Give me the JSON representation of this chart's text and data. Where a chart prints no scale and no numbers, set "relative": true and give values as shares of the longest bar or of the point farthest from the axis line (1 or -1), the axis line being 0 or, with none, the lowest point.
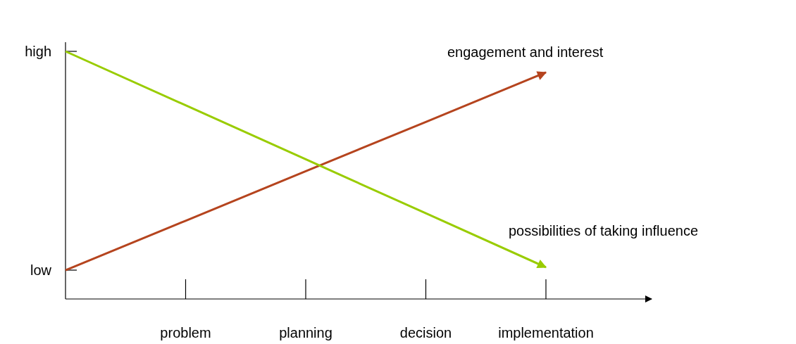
{
  "chart_data": {
    "type": "line",
    "relative": true,
    "categories": [
      null,
      "problem",
      "planning",
      "decision",
      "implementation"
    ],
    "annotations": [
      "high",
      "low"
    ],
    "series": [
      {
        "name": "engagement and interest",
        "color": "#b5441e",
        "values": [
          0.116,
          0.316,
          0.516,
          0.715,
          0.915
        ]
      },
      {
        "name": "possibilities of taking influence",
        "color": "#99cc00",
        "values": [
          1,
          0.782,
          0.564,
          0.346,
          0.128
        ]
      }
    ],
    "legend": false,
    "line_style": "solid"
  }
}
